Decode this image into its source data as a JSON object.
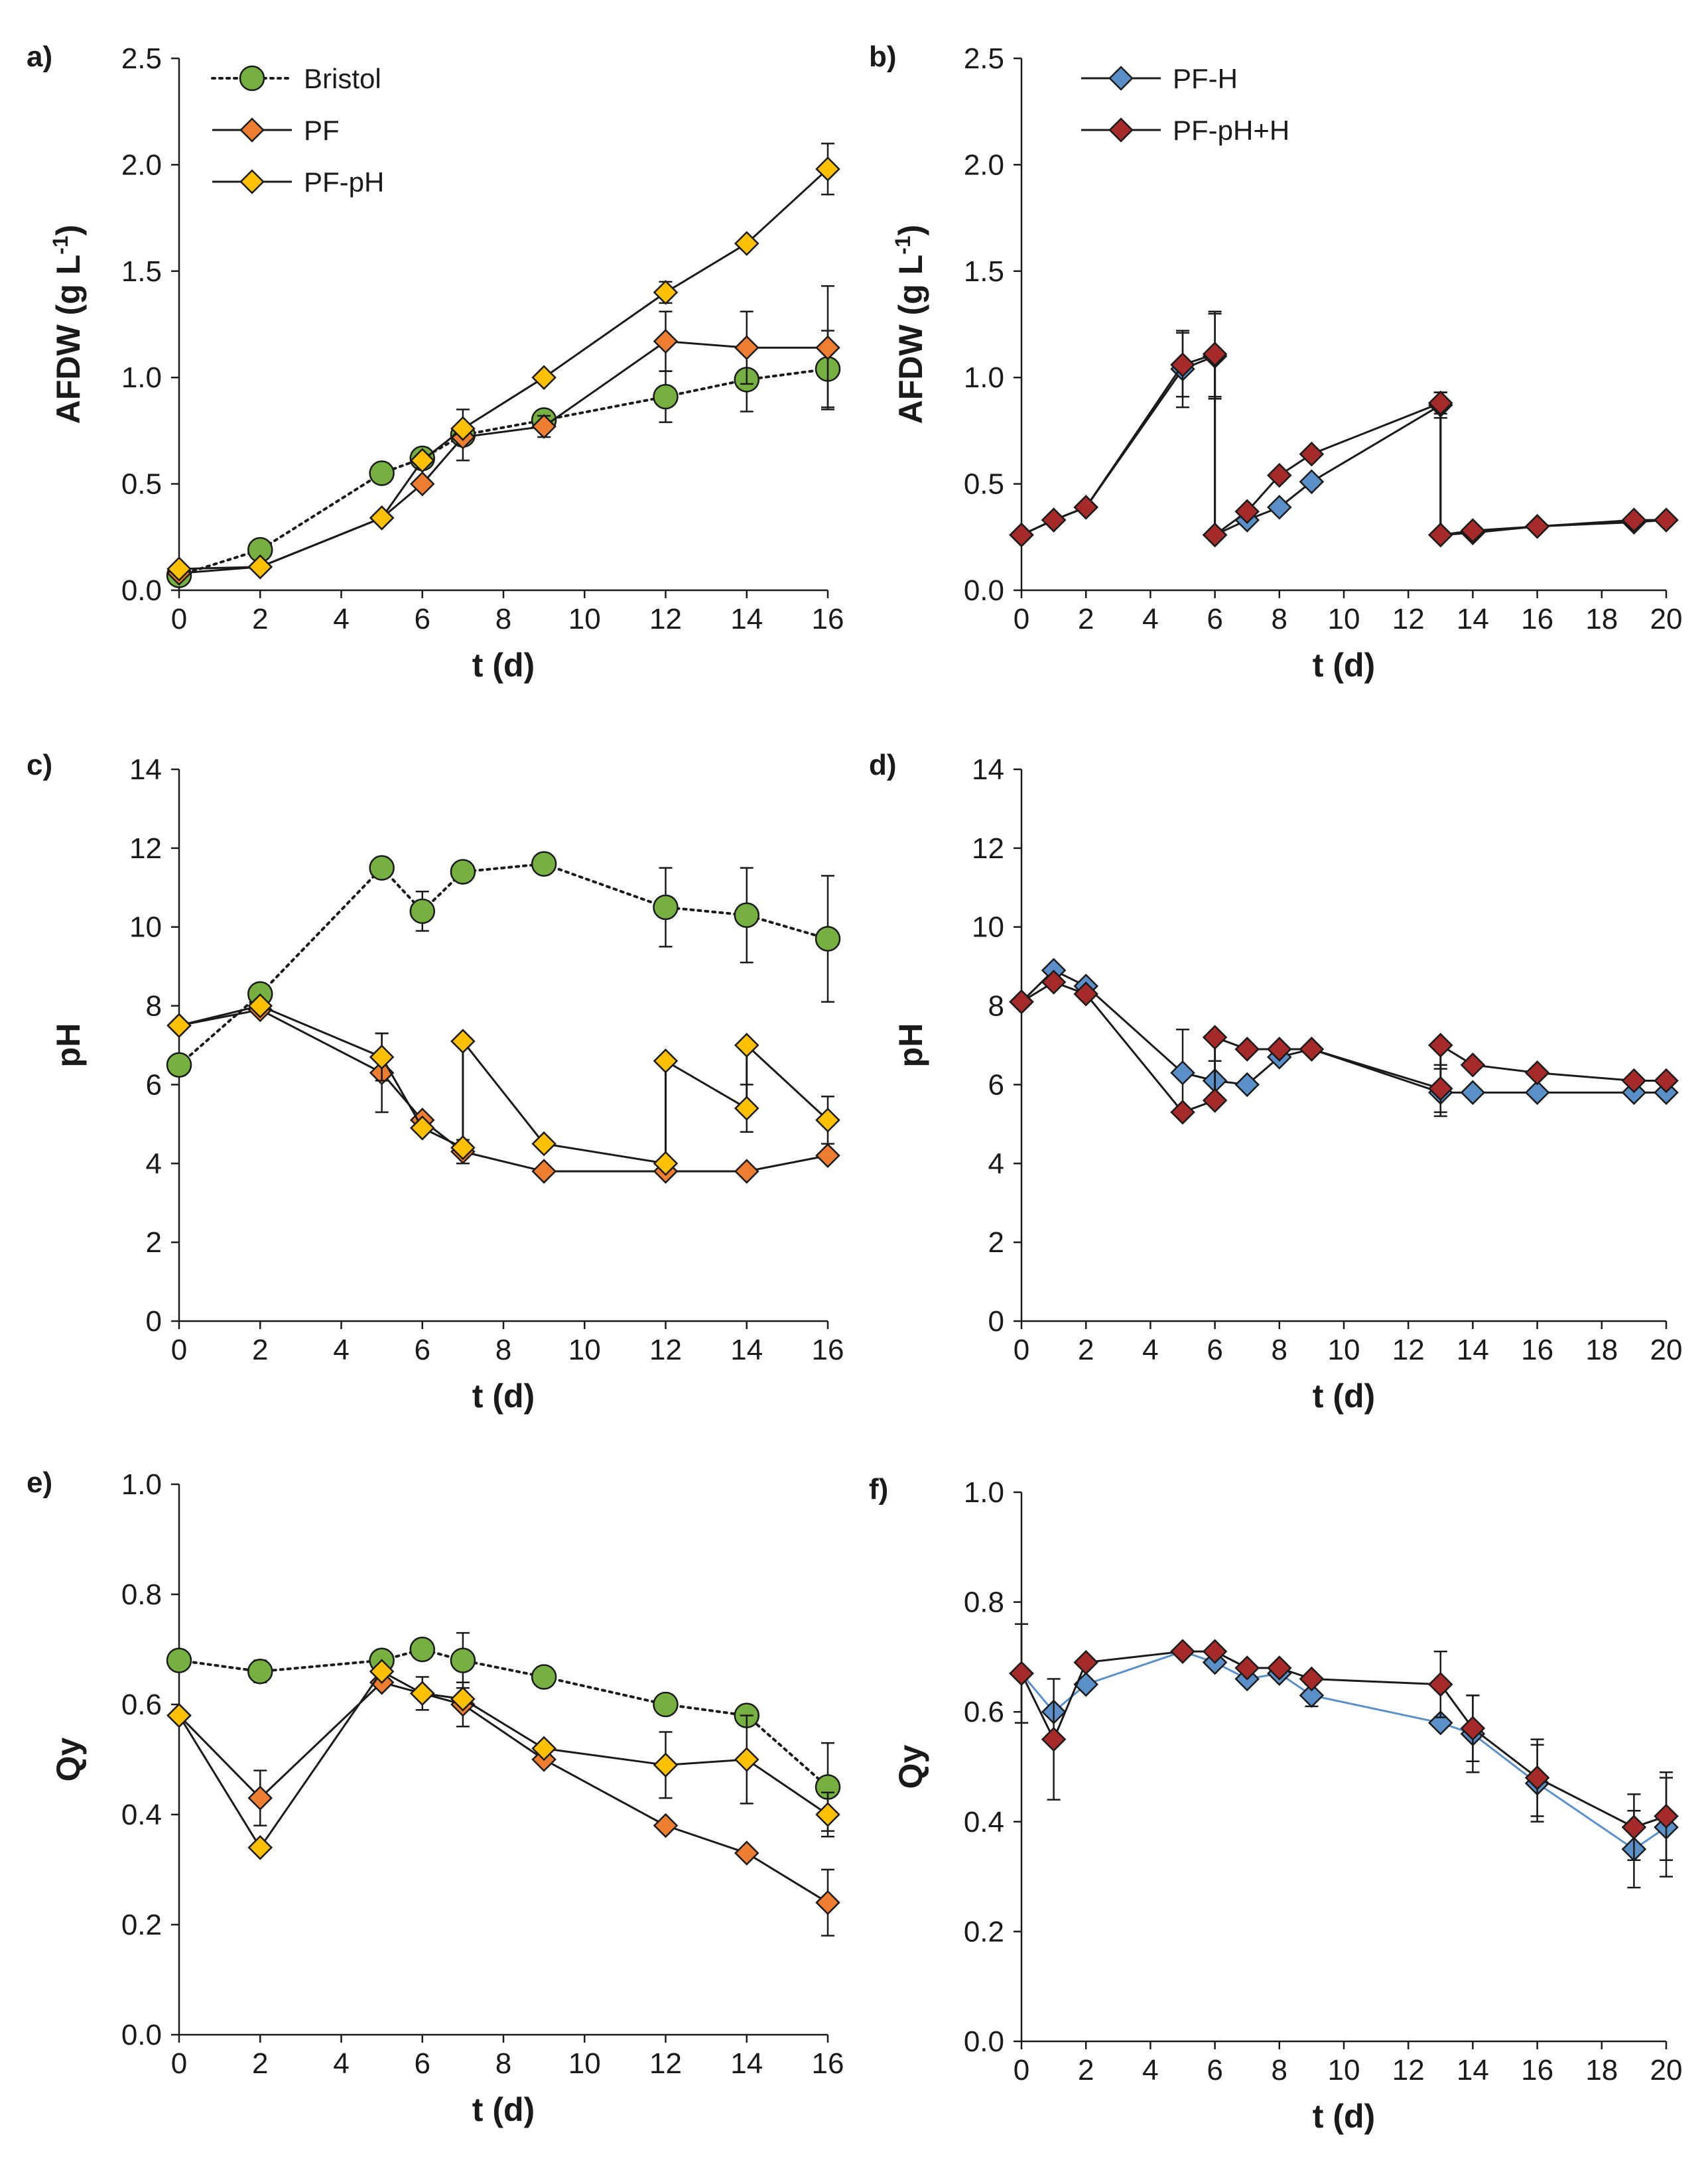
{
  "colors": {
    "Bristol": "#76b041",
    "PF": "#ed7d31",
    "PF-pH": "#ffc000",
    "PF-H": "#5b8fc7",
    "PF-pH+H": "#a52a2a"
  },
  "chart_data": [
    {
      "id": "a",
      "label": "a)",
      "type": "line",
      "xlabel": "t (d)",
      "ylabel": "AFDW (g L",
      "ylabel_sup": "-1",
      "ylabel_end": ")",
      "xlim": [
        0,
        16
      ],
      "ylim": [
        0,
        2.5
      ],
      "xticks": [
        0,
        2,
        4,
        6,
        8,
        10,
        12,
        14,
        16
      ],
      "yticks": [
        0.0,
        0.5,
        1.0,
        1.5,
        2.0,
        2.5
      ],
      "ytick_labels": [
        "0.0",
        "0.5",
        "1.0",
        "1.5",
        "2.0",
        "2.5"
      ],
      "legend": [
        "Bristol",
        "PF",
        "PF-pH"
      ],
      "series": [
        {
          "name": "Bristol",
          "marker": "circle",
          "dash": "dotted",
          "x": [
            0,
            2,
            5,
            6,
            7,
            9,
            12,
            14,
            16
          ],
          "y": [
            0.07,
            0.19,
            0.55,
            0.62,
            0.73,
            0.8,
            0.91,
            0.99,
            1.04
          ],
          "err": [
            0,
            0,
            0,
            0,
            0.12,
            0,
            0.12,
            0.15,
            0.18
          ]
        },
        {
          "name": "PF",
          "marker": "diamond",
          "dash": "solid",
          "x": [
            0,
            2,
            5,
            6,
            7,
            9,
            12,
            14,
            16
          ],
          "y": [
            0.08,
            0.11,
            0.34,
            0.5,
            0.72,
            0.77,
            1.17,
            1.14,
            1.14
          ],
          "err": [
            0,
            0,
            0,
            0,
            0,
            0.05,
            0.14,
            0.17,
            0.29
          ]
        },
        {
          "name": "PF-pH",
          "marker": "diamond",
          "dash": "solid",
          "x": [
            0,
            2,
            5,
            6,
            7,
            9,
            12,
            14,
            16
          ],
          "y": [
            0.1,
            0.11,
            0.34,
            0.61,
            0.76,
            1.0,
            1.4,
            1.63,
            1.98
          ],
          "err": [
            0,
            0,
            0,
            0,
            0,
            0,
            0.05,
            0,
            0.12
          ]
        }
      ]
    },
    {
      "id": "b",
      "label": "b)",
      "type": "line",
      "xlabel": "t (d)",
      "ylabel": "AFDW (g L",
      "ylabel_sup": "-1",
      "ylabel_end": ")",
      "xlim": [
        0,
        20
      ],
      "ylim": [
        0,
        2.5
      ],
      "xticks": [
        0,
        2,
        4,
        6,
        8,
        10,
        12,
        14,
        16,
        18,
        20
      ],
      "yticks": [
        0.0,
        0.5,
        1.0,
        1.5,
        2.0,
        2.5
      ],
      "ytick_labels": [
        "0.0",
        "0.5",
        "1.0",
        "1.5",
        "2.0",
        "2.5"
      ],
      "legend": [
        "PF-H",
        "PF-pH+H"
      ],
      "series": [
        {
          "name": "PF-H",
          "marker": "diamond",
          "dash": "solid",
          "x": [
            0,
            1,
            2,
            5,
            6,
            6,
            7,
            8,
            9,
            13,
            13,
            14,
            16,
            19,
            20
          ],
          "y": [
            0.26,
            0.33,
            0.39,
            1.04,
            1.1,
            0.26,
            0.33,
            0.39,
            0.51,
            0.87,
            0.26,
            0.27,
            0.3,
            0.32,
            0.33
          ],
          "err": [
            0,
            0,
            0,
            0.18,
            0.2,
            0,
            0,
            0,
            0,
            0.06,
            0,
            0,
            0,
            0,
            0
          ]
        },
        {
          "name": "PF-pH+H",
          "marker": "diamond",
          "dash": "solid",
          "x": [
            0,
            1,
            2,
            5,
            6,
            6,
            7,
            8,
            9,
            13,
            13,
            14,
            16,
            19,
            20
          ],
          "y": [
            0.26,
            0.33,
            0.39,
            1.06,
            1.11,
            0.26,
            0.37,
            0.54,
            0.64,
            0.88,
            0.26,
            0.28,
            0.3,
            0.33,
            0.33
          ],
          "err": [
            0,
            0,
            0,
            0.15,
            0.2,
            0,
            0,
            0,
            0,
            0.05,
            0,
            0,
            0,
            0,
            0
          ]
        }
      ]
    },
    {
      "id": "c",
      "label": "c)",
      "type": "line",
      "xlabel": "t (d)",
      "ylabel": "pH",
      "xlim": [
        0,
        16
      ],
      "ylim": [
        0,
        14
      ],
      "xticks": [
        0,
        2,
        4,
        6,
        8,
        10,
        12,
        14,
        16
      ],
      "yticks": [
        0,
        2,
        4,
        6,
        8,
        10,
        12,
        14
      ],
      "ytick_labels": [
        "0",
        "2",
        "4",
        "6",
        "8",
        "10",
        "12",
        "14"
      ],
      "series": [
        {
          "name": "Bristol",
          "marker": "circle",
          "dash": "dotted",
          "x": [
            0,
            2,
            5,
            6,
            7,
            9,
            12,
            14,
            16
          ],
          "y": [
            6.5,
            8.3,
            11.5,
            10.4,
            11.4,
            11.6,
            10.5,
            10.3,
            9.7
          ],
          "err": [
            0,
            0,
            0,
            0.5,
            0,
            0.2,
            1.0,
            1.2,
            1.6
          ]
        },
        {
          "name": "PF",
          "marker": "diamond",
          "dash": "solid",
          "x": [
            0,
            2,
            5,
            6,
            7,
            9,
            12,
            14,
            16
          ],
          "y": [
            7.5,
            7.9,
            6.3,
            5.1,
            4.3,
            3.8,
            3.8,
            3.8,
            4.2
          ],
          "err": [
            0,
            0,
            1.0,
            0,
            0.3,
            0,
            0,
            0,
            0
          ]
        },
        {
          "name": "PF-pH",
          "marker": "diamond",
          "dash": "solid",
          "x": [
            0,
            2,
            5,
            6,
            7,
            7,
            9,
            12,
            12,
            14,
            14,
            16
          ],
          "y": [
            7.5,
            8.0,
            6.7,
            4.9,
            4.4,
            7.1,
            4.5,
            4.0,
            6.6,
            5.4,
            7.0,
            5.1
          ],
          "err": [
            0,
            0,
            0.6,
            0,
            0,
            0,
            0,
            0,
            0,
            0.6,
            0,
            0.6
          ]
        }
      ]
    },
    {
      "id": "d",
      "label": "d)",
      "type": "line",
      "xlabel": "t (d)",
      "ylabel": "pH",
      "xlim": [
        0,
        20
      ],
      "ylim": [
        0,
        14
      ],
      "xticks": [
        0,
        2,
        4,
        6,
        8,
        10,
        12,
        14,
        16,
        18,
        20
      ],
      "yticks": [
        0,
        2,
        4,
        6,
        8,
        10,
        12,
        14
      ],
      "ytick_labels": [
        "0",
        "2",
        "4",
        "6",
        "8",
        "10",
        "12",
        "14"
      ],
      "series": [
        {
          "name": "PF-H",
          "marker": "diamond",
          "dash": "solid",
          "x": [
            0,
            1,
            2,
            5,
            6,
            7,
            8,
            9,
            13,
            14,
            16,
            19,
            20
          ],
          "y": [
            8.1,
            8.9,
            8.5,
            6.3,
            6.1,
            6.0,
            6.7,
            6.9,
            5.8,
            5.8,
            5.8,
            5.8,
            5.8
          ],
          "err": [
            0,
            0,
            0,
            1.1,
            0.5,
            0,
            0,
            0,
            0.6,
            0,
            0,
            0,
            0
          ]
        },
        {
          "name": "PF-pH+H",
          "marker": "diamond",
          "dash": "solid",
          "x": [
            0,
            1,
            2,
            5,
            6,
            6,
            7,
            8,
            9,
            13,
            13,
            14,
            16,
            19,
            20
          ],
          "y": [
            8.1,
            8.6,
            8.3,
            5.3,
            5.6,
            7.2,
            6.9,
            6.9,
            6.9,
            5.9,
            7.0,
            6.5,
            6.3,
            6.1,
            6.1
          ],
          "err": [
            0,
            0,
            0,
            0,
            0,
            0,
            0,
            0,
            0,
            0.6,
            0,
            0,
            0,
            0,
            0
          ]
        }
      ]
    },
    {
      "id": "e",
      "label": "e)",
      "type": "line",
      "xlabel": "t (d)",
      "ylabel": "Qy",
      "xlim": [
        0,
        16
      ],
      "ylim": [
        0,
        1.0
      ],
      "xticks": [
        0,
        2,
        4,
        6,
        8,
        10,
        12,
        14,
        16
      ],
      "yticks": [
        0.0,
        0.2,
        0.4,
        0.6,
        0.8,
        1.0
      ],
      "ytick_labels": [
        "0.0",
        "0.2",
        "0.4",
        "0.6",
        "0.8",
        "1.0"
      ],
      "series": [
        {
          "name": "Bristol",
          "marker": "circle",
          "dash": "dotted",
          "x": [
            0,
            2,
            5,
            6,
            7,
            9,
            12,
            14,
            16
          ],
          "y": [
            0.68,
            0.66,
            0.68,
            0.7,
            0.68,
            0.65,
            0.6,
            0.58,
            0.45
          ],
          "err": [
            0,
            0.02,
            0,
            0,
            0.05,
            0,
            0,
            0,
            0.08
          ]
        },
        {
          "name": "PF",
          "marker": "diamond",
          "dash": "solid",
          "x": [
            0,
            2,
            5,
            6,
            7,
            9,
            12,
            14,
            16
          ],
          "y": [
            0.58,
            0.43,
            0.64,
            0.62,
            0.6,
            0.5,
            0.38,
            0.33,
            0.24
          ],
          "err": [
            0,
            0.05,
            0,
            0.03,
            0.04,
            0,
            0,
            0,
            0.06
          ]
        },
        {
          "name": "PF-pH",
          "marker": "diamond",
          "dash": "solid",
          "x": [
            0,
            2,
            5,
            6,
            7,
            9,
            12,
            14,
            16
          ],
          "y": [
            0.58,
            0.34,
            0.66,
            0.62,
            0.61,
            0.52,
            0.49,
            0.5,
            0.4
          ],
          "err": [
            0,
            0,
            0,
            0,
            0,
            0,
            0.06,
            0.08,
            0.04
          ]
        }
      ]
    },
    {
      "id": "f",
      "label": "f)",
      "type": "line",
      "xlabel": "t (d)",
      "ylabel": "Qy",
      "xlim": [
        0,
        20
      ],
      "ylim": [
        0,
        1.0
      ],
      "xticks": [
        0,
        2,
        4,
        6,
        8,
        10,
        12,
        14,
        16,
        18,
        20
      ],
      "yticks": [
        0.0,
        0.2,
        0.4,
        0.6,
        0.8,
        1.0
      ],
      "ytick_labels": [
        "0.0",
        "0.2",
        "0.4",
        "0.6",
        "0.8",
        "1.0"
      ],
      "series": [
        {
          "name": "PF-H",
          "marker": "diamond",
          "dash": "solid",
          "line_color": "#5b8fc7",
          "x": [
            0,
            1,
            2,
            5,
            6,
            7,
            8,
            9,
            13,
            14,
            16,
            19,
            20
          ],
          "y": [
            0.67,
            0.6,
            0.65,
            0.71,
            0.69,
            0.66,
            0.67,
            0.63,
            0.58,
            0.56,
            0.47,
            0.35,
            0.39
          ],
          "err": [
            0.09,
            0,
            0,
            0,
            0,
            0,
            0,
            0.02,
            0,
            0.07,
            0.07,
            0.07,
            0.09
          ]
        },
        {
          "name": "PF-pH+H",
          "marker": "diamond",
          "dash": "solid",
          "x": [
            0,
            1,
            2,
            5,
            6,
            7,
            8,
            9,
            13,
            14,
            16,
            19,
            20
          ],
          "y": [
            0.67,
            0.55,
            0.69,
            0.71,
            0.71,
            0.68,
            0.68,
            0.66,
            0.65,
            0.57,
            0.48,
            0.39,
            0.41
          ],
          "err": [
            0,
            0.11,
            0,
            0,
            0,
            0,
            0,
            0,
            0.06,
            0.06,
            0.07,
            0.06,
            0.08
          ]
        }
      ]
    }
  ]
}
